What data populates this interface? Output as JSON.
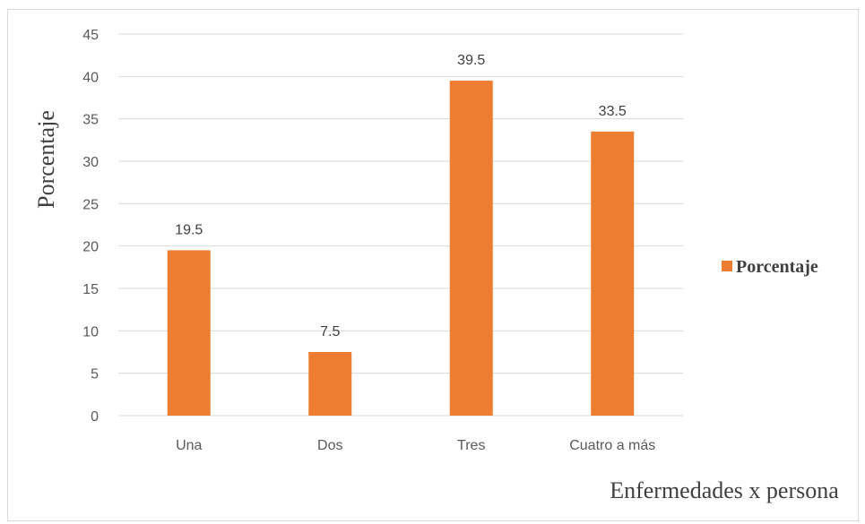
{
  "chart_data": {
    "type": "bar",
    "categories": [
      "Una",
      "Dos",
      "Tres",
      "Cuatro a más"
    ],
    "series": [
      {
        "name": "Porcentaje",
        "values": [
          19.5,
          7.5,
          39.5,
          33.5
        ],
        "color": "#ed7d31"
      }
    ],
    "data_labels": [
      "19.5",
      "7.5",
      "39.5",
      "33.5"
    ],
    "xlabel": "Enfermedades x persona",
    "ylabel": "Porcentaje",
    "ylim": [
      0,
      45
    ],
    "yticks": [
      "0",
      "5",
      "10",
      "15",
      "20",
      "25",
      "30",
      "35",
      "40",
      "45"
    ],
    "grid": true,
    "legend": {
      "position": "right",
      "entries": [
        "Porcentaje"
      ]
    },
    "gridline_color": "#d9d9d9"
  }
}
